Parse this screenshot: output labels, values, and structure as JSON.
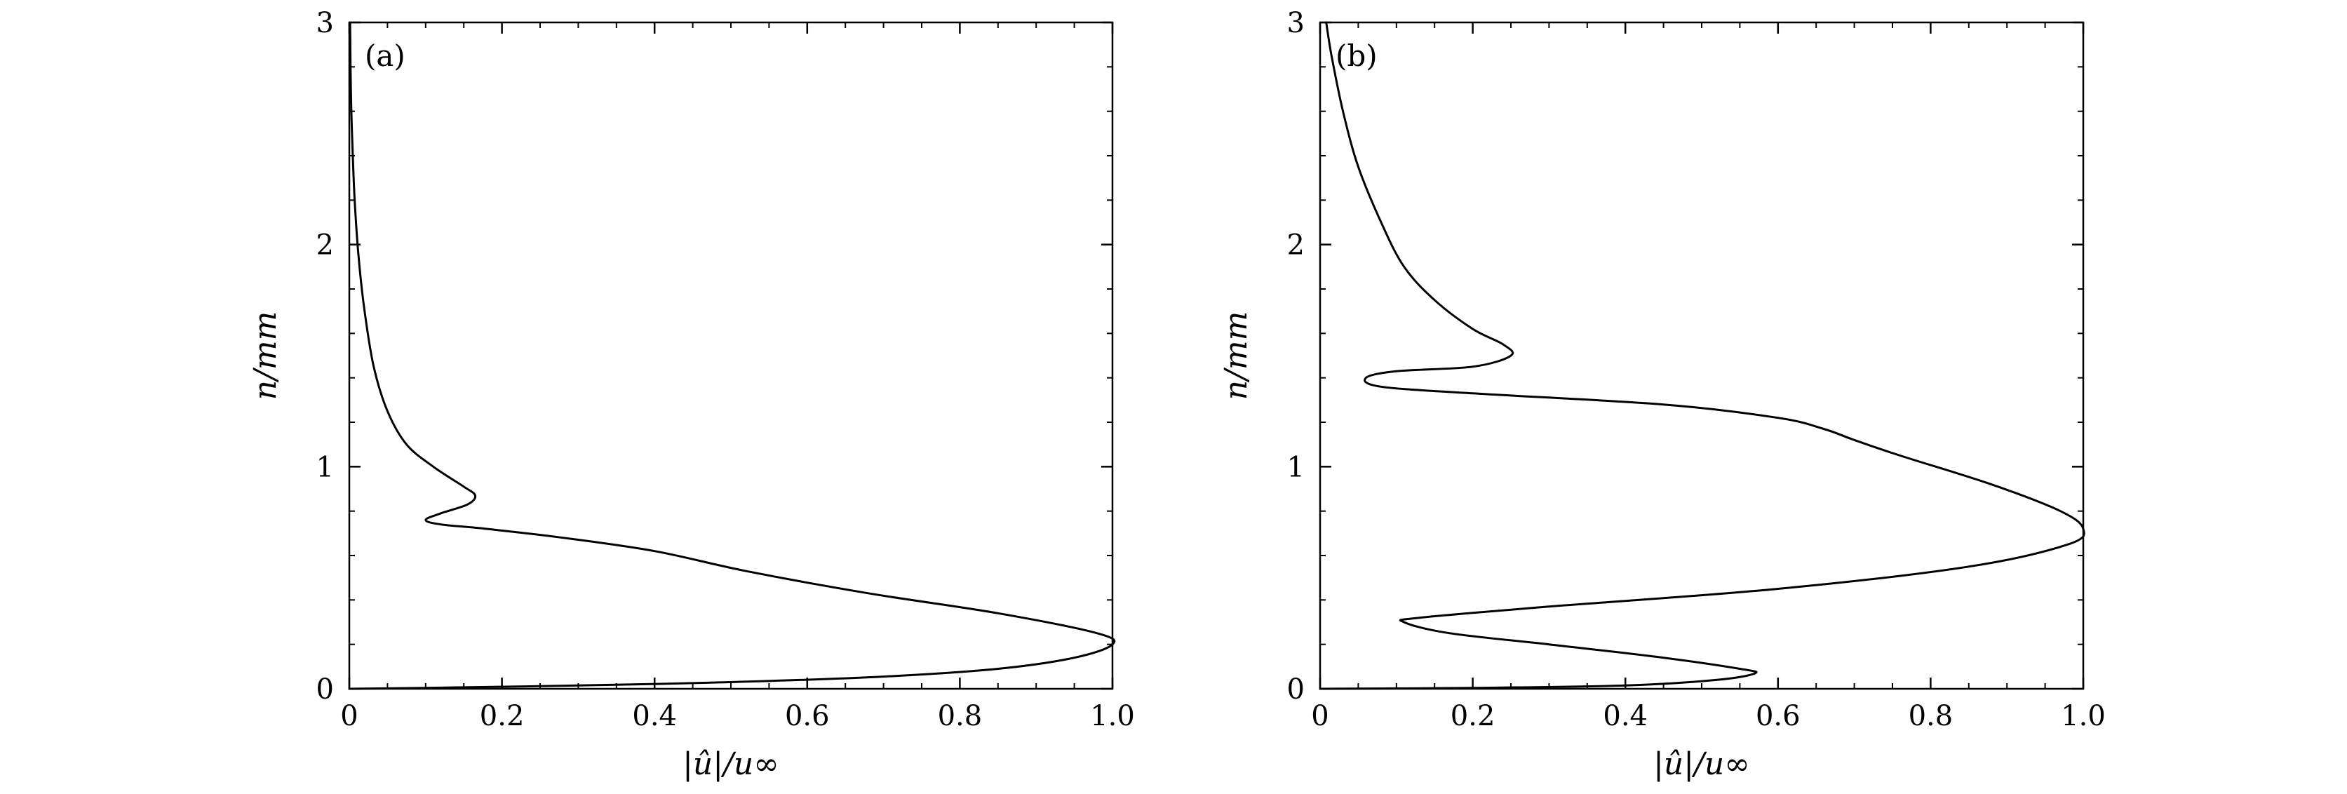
{
  "chart_data": [
    {
      "type": "line",
      "panel_label": "(a)",
      "xlabel": "|û|/u∞",
      "ylabel": "n/mm",
      "xlim": [
        0,
        1.0
      ],
      "ylim": [
        0,
        3
      ],
      "x_ticks": [
        "0",
        "0.2",
        "0.4",
        "0.6",
        "0.8",
        "1.0"
      ],
      "y_ticks": [
        "0",
        "1",
        "2",
        "3"
      ],
      "grid": false,
      "series": [
        {
          "x": [
            0.0,
            0.1,
            0.3,
            0.5,
            0.7,
            0.85,
            0.95,
            1.0,
            0.98,
            0.85,
            0.68,
            0.52,
            0.4,
            0.28,
            0.18,
            0.12,
            0.1,
            0.12,
            0.155,
            0.165,
            0.15,
            0.11,
            0.075,
            0.05,
            0.032,
            0.02,
            0.012,
            0.007,
            0.004,
            0.002,
            0.001
          ],
          "y": [
            0.0,
            0.004,
            0.015,
            0.03,
            0.055,
            0.09,
            0.14,
            0.2,
            0.25,
            0.34,
            0.43,
            0.53,
            0.62,
            0.68,
            0.72,
            0.74,
            0.76,
            0.79,
            0.83,
            0.87,
            0.91,
            1.0,
            1.1,
            1.25,
            1.45,
            1.7,
            1.95,
            2.2,
            2.45,
            2.7,
            3.0
          ]
        }
      ]
    },
    {
      "type": "line",
      "panel_label": "(b)",
      "xlabel": "|û|/u∞",
      "ylabel": "n/mm",
      "xlim": [
        0,
        1.0
      ],
      "ylim": [
        0,
        3
      ],
      "x_ticks": [
        "0",
        "0.2",
        "0.4",
        "0.6",
        "0.8",
        "1.0"
      ],
      "y_ticks": [
        "0",
        "1",
        "2",
        "3"
      ],
      "grid": false,
      "series": [
        {
          "x": [
            0.0,
            0.2,
            0.4,
            0.52,
            0.57,
            0.55,
            0.45,
            0.3,
            0.17,
            0.11,
            0.13,
            0.3,
            0.6,
            0.85,
            0.98,
            1.0,
            0.97,
            0.88,
            0.76,
            0.7,
            0.66,
            0.6,
            0.45,
            0.2,
            0.08,
            0.06,
            0.1,
            0.2,
            0.25,
            0.24,
            0.2,
            0.15,
            0.11,
            0.08,
            0.05,
            0.03,
            0.015,
            0.008
          ],
          "y": [
            0.0,
            0.004,
            0.015,
            0.04,
            0.07,
            0.09,
            0.14,
            0.2,
            0.25,
            0.3,
            0.32,
            0.37,
            0.45,
            0.55,
            0.65,
            0.72,
            0.8,
            0.92,
            1.05,
            1.12,
            1.17,
            1.22,
            1.28,
            1.33,
            1.36,
            1.4,
            1.43,
            1.45,
            1.5,
            1.55,
            1.62,
            1.75,
            1.9,
            2.1,
            2.35,
            2.6,
            2.85,
            3.0
          ]
        }
      ]
    }
  ]
}
